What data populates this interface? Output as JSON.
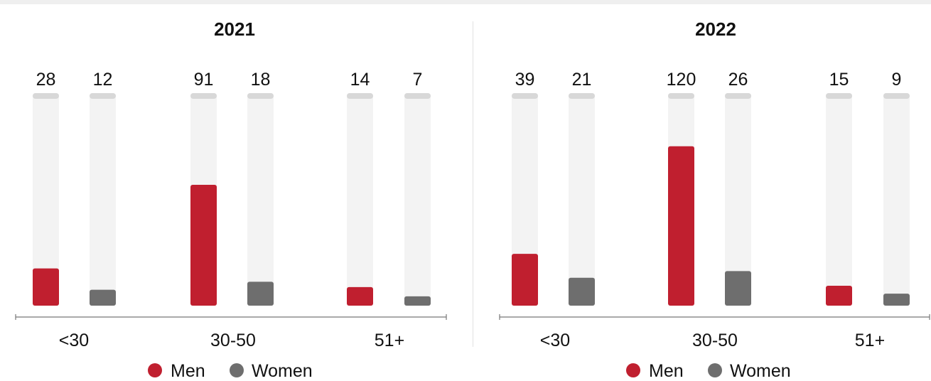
{
  "colors": {
    "men": "#c01f2f",
    "women": "#6e6e6e",
    "track": "#f3f3f3",
    "track_cap": "#d8d8d8",
    "axis": "#777777"
  },
  "chart_data": [
    {
      "type": "bar",
      "title": "2021",
      "categories": [
        "<30",
        "30-50",
        "51+"
      ],
      "series": [
        {
          "name": "Men",
          "values": [
            28,
            91,
            14
          ]
        },
        {
          "name": "Women",
          "values": [
            12,
            18,
            7
          ]
        }
      ],
      "ylim": [
        0,
        160
      ],
      "legend": {
        "position": "bottom",
        "items": [
          "Men",
          "Women"
        ]
      }
    },
    {
      "type": "bar",
      "title": "2022",
      "categories": [
        "<30",
        "30-50",
        "51+"
      ],
      "series": [
        {
          "name": "Men",
          "values": [
            39,
            120,
            15
          ]
        },
        {
          "name": "Women",
          "values": [
            21,
            26,
            9
          ]
        }
      ],
      "ylim": [
        0,
        160
      ],
      "legend": {
        "position": "bottom",
        "items": [
          "Men",
          "Women"
        ]
      }
    }
  ]
}
